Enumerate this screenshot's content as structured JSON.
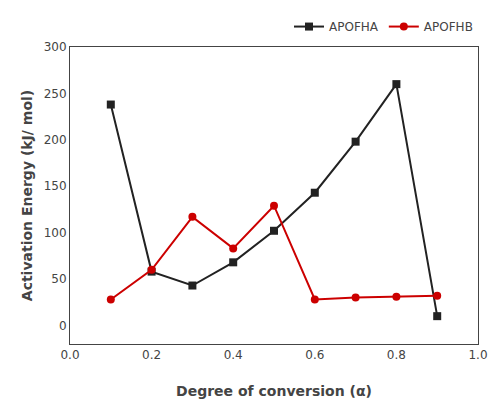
{
  "chart_data": {
    "type": "line",
    "x_label": "Degree of conversion (α)",
    "y_label": "Activation Energy (kJ/ mol)",
    "x": [
      0.1,
      0.2,
      0.3,
      0.4,
      0.5,
      0.6,
      0.7,
      0.8,
      0.9
    ],
    "series": [
      {
        "name": "APOFHA",
        "color": "#222222",
        "marker": "square",
        "values": [
          238,
          58,
          43,
          68,
          102,
          143,
          198,
          260,
          10
        ]
      },
      {
        "name": "APOFHB",
        "color": "#cc0000",
        "marker": "circle",
        "values": [
          28,
          60,
          117,
          83,
          129,
          28,
          30,
          31,
          32
        ]
      }
    ],
    "xlim": [
      0.0,
      1.0
    ],
    "xticks": [
      {
        "value": 0,
        "label": "0.0"
      },
      0.2,
      0.4,
      0.6,
      0.8,
      {
        "value": 1,
        "label": "1.0"
      }
    ],
    "ylim": [
      -20,
      300
    ],
    "yticks": [
      0,
      50,
      100,
      150,
      200,
      250,
      300
    ],
    "grid": false,
    "legend": "upper right"
  }
}
